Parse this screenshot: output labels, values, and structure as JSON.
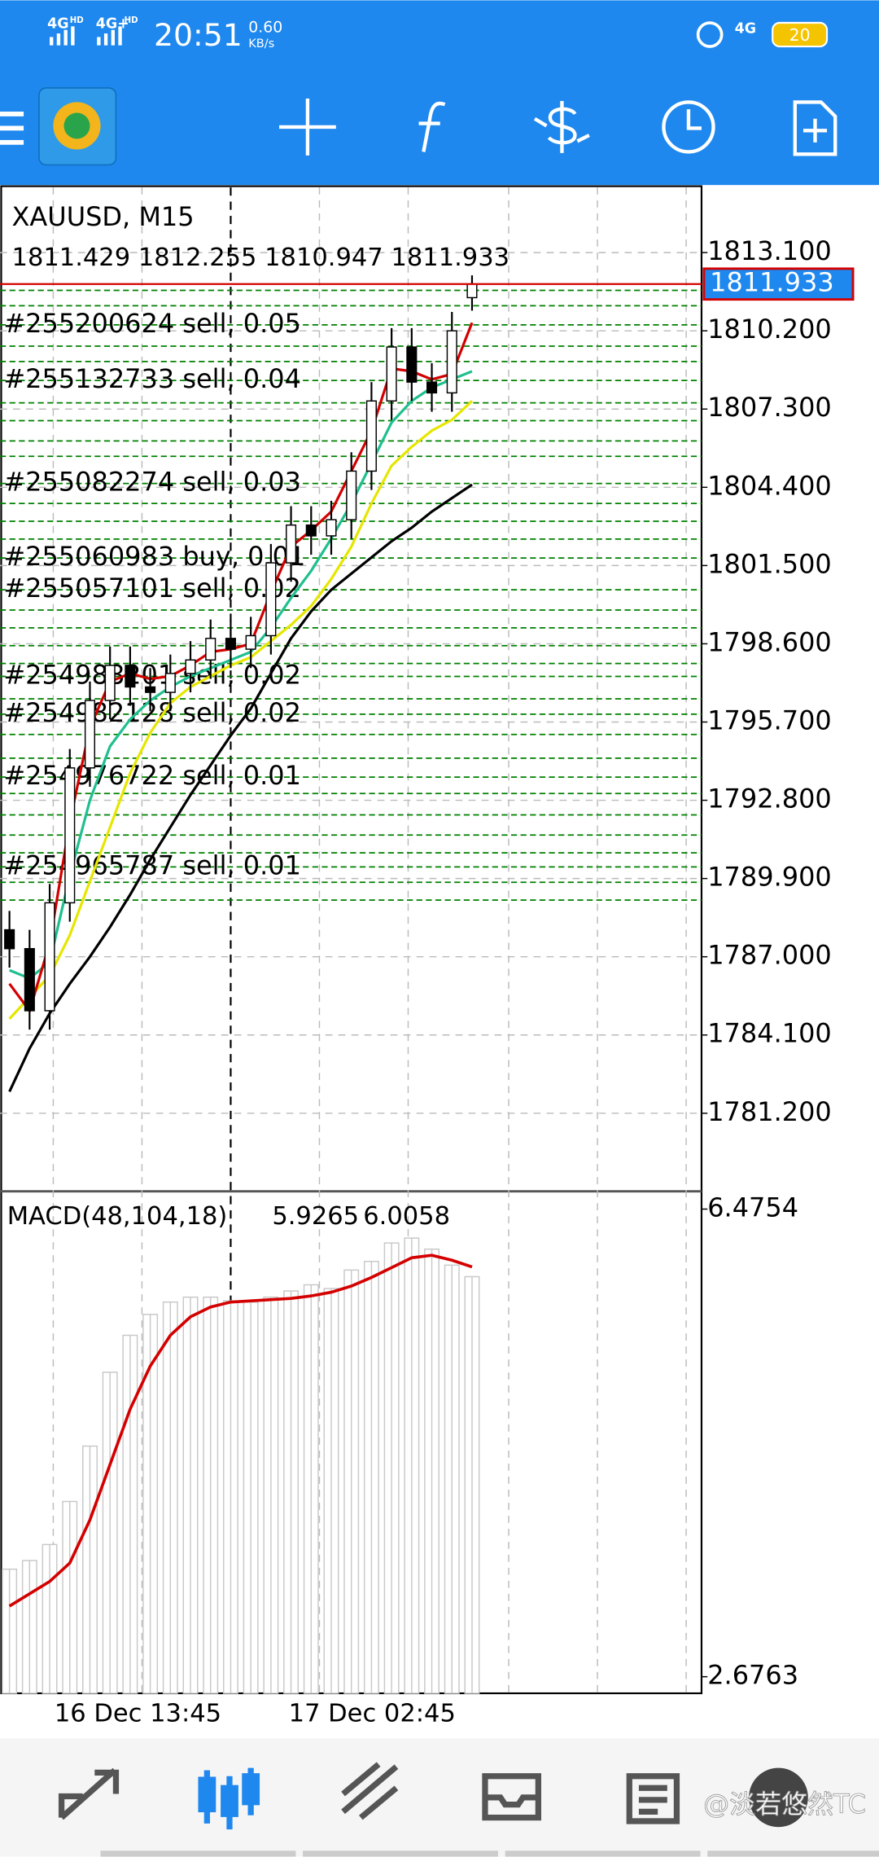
{
  "status_bar": {
    "net1": "4G",
    "net1_tag": "HD",
    "net2": "4G+",
    "net2_tag": "HD",
    "time": "20:51",
    "speed": "0.60",
    "speed_unit": "KB/s",
    "net3": "4G",
    "battery": "20"
  },
  "chart_data": [
    {
      "type": "candlestick",
      "title": "XAUUSD, M15",
      "ohlc": "1811.429 1812.255 1810.947 1811.933",
      "candles": [
        {
          "o": 1788.0,
          "h": 1788.7,
          "l": 1786.6,
          "c": 1787.3
        },
        {
          "o": 1787.3,
          "h": 1788.0,
          "l": 1784.3,
          "c": 1785.0
        },
        {
          "o": 1785.0,
          "h": 1789.7,
          "l": 1784.3,
          "c": 1789.0
        },
        {
          "o": 1789.0,
          "h": 1794.7,
          "l": 1788.3,
          "c": 1794.0
        },
        {
          "o": 1794.0,
          "h": 1797.2,
          "l": 1793.3,
          "c": 1796.5
        },
        {
          "o": 1796.5,
          "h": 1798.5,
          "l": 1795.8,
          "c": 1797.8
        },
        {
          "o": 1797.8,
          "h": 1798.5,
          "l": 1796.3,
          "c": 1797.0
        },
        {
          "o": 1797.0,
          "h": 1797.7,
          "l": 1796.1,
          "c": 1796.8
        },
        {
          "o": 1796.8,
          "h": 1798.2,
          "l": 1796.1,
          "c": 1797.5
        },
        {
          "o": 1797.5,
          "h": 1798.7,
          "l": 1796.8,
          "c": 1798.0
        },
        {
          "o": 1798.0,
          "h": 1799.5,
          "l": 1797.3,
          "c": 1798.8
        },
        {
          "o": 1798.8,
          "h": 1799.5,
          "l": 1797.7,
          "c": 1798.4
        },
        {
          "o": 1798.4,
          "h": 1799.6,
          "l": 1797.7,
          "c": 1798.9
        },
        {
          "o": 1798.9,
          "h": 1802.3,
          "l": 1798.2,
          "c": 1801.6
        },
        {
          "o": 1801.6,
          "h": 1803.7,
          "l": 1800.9,
          "c": 1803.0
        },
        {
          "o": 1803.0,
          "h": 1803.7,
          "l": 1801.9,
          "c": 1802.6
        },
        {
          "o": 1802.6,
          "h": 1803.9,
          "l": 1801.9,
          "c": 1803.2
        },
        {
          "o": 1803.2,
          "h": 1805.7,
          "l": 1802.5,
          "c": 1805.0
        },
        {
          "o": 1805.0,
          "h": 1808.3,
          "l": 1804.3,
          "c": 1807.6
        },
        {
          "o": 1807.6,
          "h": 1810.3,
          "l": 1806.9,
          "c": 1809.6
        },
        {
          "o": 1809.6,
          "h": 1810.3,
          "l": 1807.6,
          "c": 1808.3
        },
        {
          "o": 1808.3,
          "h": 1809.0,
          "l": 1807.2,
          "c": 1807.9
        },
        {
          "o": 1807.9,
          "h": 1810.9,
          "l": 1807.2,
          "c": 1810.2
        },
        {
          "o": 1811.429,
          "h": 1812.255,
          "l": 1810.947,
          "c": 1811.933
        }
      ],
      "series": [
        {
          "color": "#000000",
          "values": [
            1782.0,
            1783.6,
            1784.9,
            1786.0,
            1787.0,
            1788.1,
            1789.3,
            1790.6,
            1791.8,
            1793.0,
            1794.1,
            1795.2,
            1796.2,
            1797.5,
            1798.8,
            1799.8,
            1800.6,
            1801.2,
            1801.8,
            1802.4,
            1802.9,
            1803.5,
            1804.0,
            1804.5
          ]
        },
        {
          "color": "#e6e600",
          "values": [
            1784.7,
            1785.5,
            1786.3,
            1787.8,
            1789.8,
            1791.8,
            1793.8,
            1795.3,
            1796.4,
            1797.0,
            1797.4,
            1797.8,
            1798.1,
            1798.7,
            1799.3,
            1800.0,
            1801.0,
            1802.2,
            1803.8,
            1805.2,
            1805.9,
            1806.5,
            1806.9,
            1807.6
          ]
        },
        {
          "color": "#1fbf8f",
          "values": [
            1786.5,
            1786.2,
            1786.8,
            1790.0,
            1792.8,
            1794.8,
            1795.8,
            1796.5,
            1797.0,
            1797.4,
            1797.7,
            1798.0,
            1798.3,
            1799.2,
            1800.3,
            1801.3,
            1802.5,
            1803.8,
            1805.3,
            1806.8,
            1807.6,
            1808.1,
            1808.4,
            1808.7
          ]
        },
        {
          "color": "#d40000",
          "values": [
            1786.0,
            1785.0,
            1787.5,
            1792.0,
            1795.5,
            1797.2,
            1797.5,
            1797.3,
            1797.4,
            1797.8,
            1798.3,
            1798.4,
            1798.6,
            1800.5,
            1802.2,
            1802.8,
            1803.5,
            1805.0,
            1806.5,
            1808.8,
            1808.7,
            1808.4,
            1808.6,
            1810.5
          ]
        }
      ],
      "ylim": [
        1778.35,
        1815.56
      ],
      "yticks": [
        {
          "value": 1813.1,
          "label": "1813.100"
        },
        {
          "value": 1810.2,
          "label": "1810.200"
        },
        {
          "value": 1807.3,
          "label": "1807.300"
        },
        {
          "value": 1804.4,
          "label": "1804.400"
        },
        {
          "value": 1801.5,
          "label": "1801.500"
        },
        {
          "value": 1798.6,
          "label": "1798.600"
        },
        {
          "value": 1795.7,
          "label": "1795.700"
        },
        {
          "value": 1792.8,
          "label": "1792.800"
        },
        {
          "value": 1789.9,
          "label": "1789.900"
        },
        {
          "value": 1787.0,
          "label": "1787.000"
        },
        {
          "value": 1784.1,
          "label": "1784.100"
        },
        {
          "value": 1781.2,
          "label": "1781.200"
        }
      ],
      "grid": true,
      "last_price": 1811.933,
      "last_color": "#d40000",
      "order_color": "#008000",
      "orders": [
        {
          "label": null,
          "price": 1811.7
        },
        {
          "label": null,
          "price": 1811.13
        },
        {
          "label": "#255200624 sell, 0.05",
          "price": 1810.42
        },
        {
          "label": null,
          "price": 1809.63
        },
        {
          "label": null,
          "price": 1809.06
        },
        {
          "label": "#255132733 sell, 0.04",
          "price": 1808.36
        },
        {
          "label": null,
          "price": 1807.53
        },
        {
          "label": null,
          "price": 1806.87
        },
        {
          "label": null,
          "price": 1806.12
        },
        {
          "label": null,
          "price": 1805.55
        },
        {
          "label": "#255082274 sell, 0.03",
          "price": 1804.54
        },
        {
          "label": null,
          "price": 1803.8
        },
        {
          "label": null,
          "price": 1803.14
        },
        {
          "label": null,
          "price": 1802.48
        },
        {
          "label": "#255060983 buy, 0.01",
          "price": 1801.78
        },
        {
          "label": "#255057101 sell, 0.02",
          "price": 1800.6
        },
        {
          "label": null,
          "price": 1799.85
        },
        {
          "label": null,
          "price": 1799.19
        },
        {
          "label": null,
          "price": 1798.53
        },
        {
          "label": null,
          "price": 1797.87
        },
        {
          "label": "#254988201 sell, 0.02",
          "price": 1797.39
        },
        {
          "label": null,
          "price": 1796.56
        },
        {
          "label": "#254982128 sell, 0.02",
          "price": 1795.99
        },
        {
          "label": null,
          "price": 1795.24
        },
        {
          "label": null,
          "price": 1794.36
        },
        {
          "label": "#254976722 sell, 0.01",
          "price": 1793.66
        },
        {
          "label": null,
          "price": 1793.05
        },
        {
          "label": null,
          "price": 1792.26
        },
        {
          "label": null,
          "price": 1791.51
        },
        {
          "label": null,
          "price": 1790.85
        },
        {
          "label": "#254965787 sell, 0.01",
          "price": 1790.33
        },
        {
          "label": null,
          "price": 1789.76
        },
        {
          "label": null,
          "price": 1789.1
        }
      ],
      "xlabels": [
        "16 Dec 13:45",
        "17 Dec 02:45"
      ]
    },
    {
      "type": "bar",
      "title": "MACD(48,104,18)",
      "macd_value": 5.9265,
      "signal_value": 6.0058,
      "values": [
        3.55,
        3.62,
        3.75,
        4.1,
        4.55,
        5.15,
        5.45,
        5.62,
        5.72,
        5.76,
        5.76,
        5.73,
        5.72,
        5.76,
        5.81,
        5.86,
        5.83,
        5.98,
        6.05,
        6.2,
        6.24,
        6.15,
        6.02,
        5.9265
      ],
      "color": "#c8c8c8",
      "signal": {
        "color": "#d40000",
        "values": [
          3.25,
          3.35,
          3.45,
          3.6,
          3.95,
          4.4,
          4.85,
          5.2,
          5.45,
          5.6,
          5.68,
          5.72,
          5.73,
          5.74,
          5.75,
          5.77,
          5.8,
          5.85,
          5.92,
          6.0,
          6.08,
          6.1,
          6.06,
          6.0058
        ]
      },
      "ylim": [
        2.5416,
        6.6101
      ],
      "yticks": [
        6.4754,
        2.6763
      ]
    }
  ],
  "watermark": "@淡若悠然TC"
}
